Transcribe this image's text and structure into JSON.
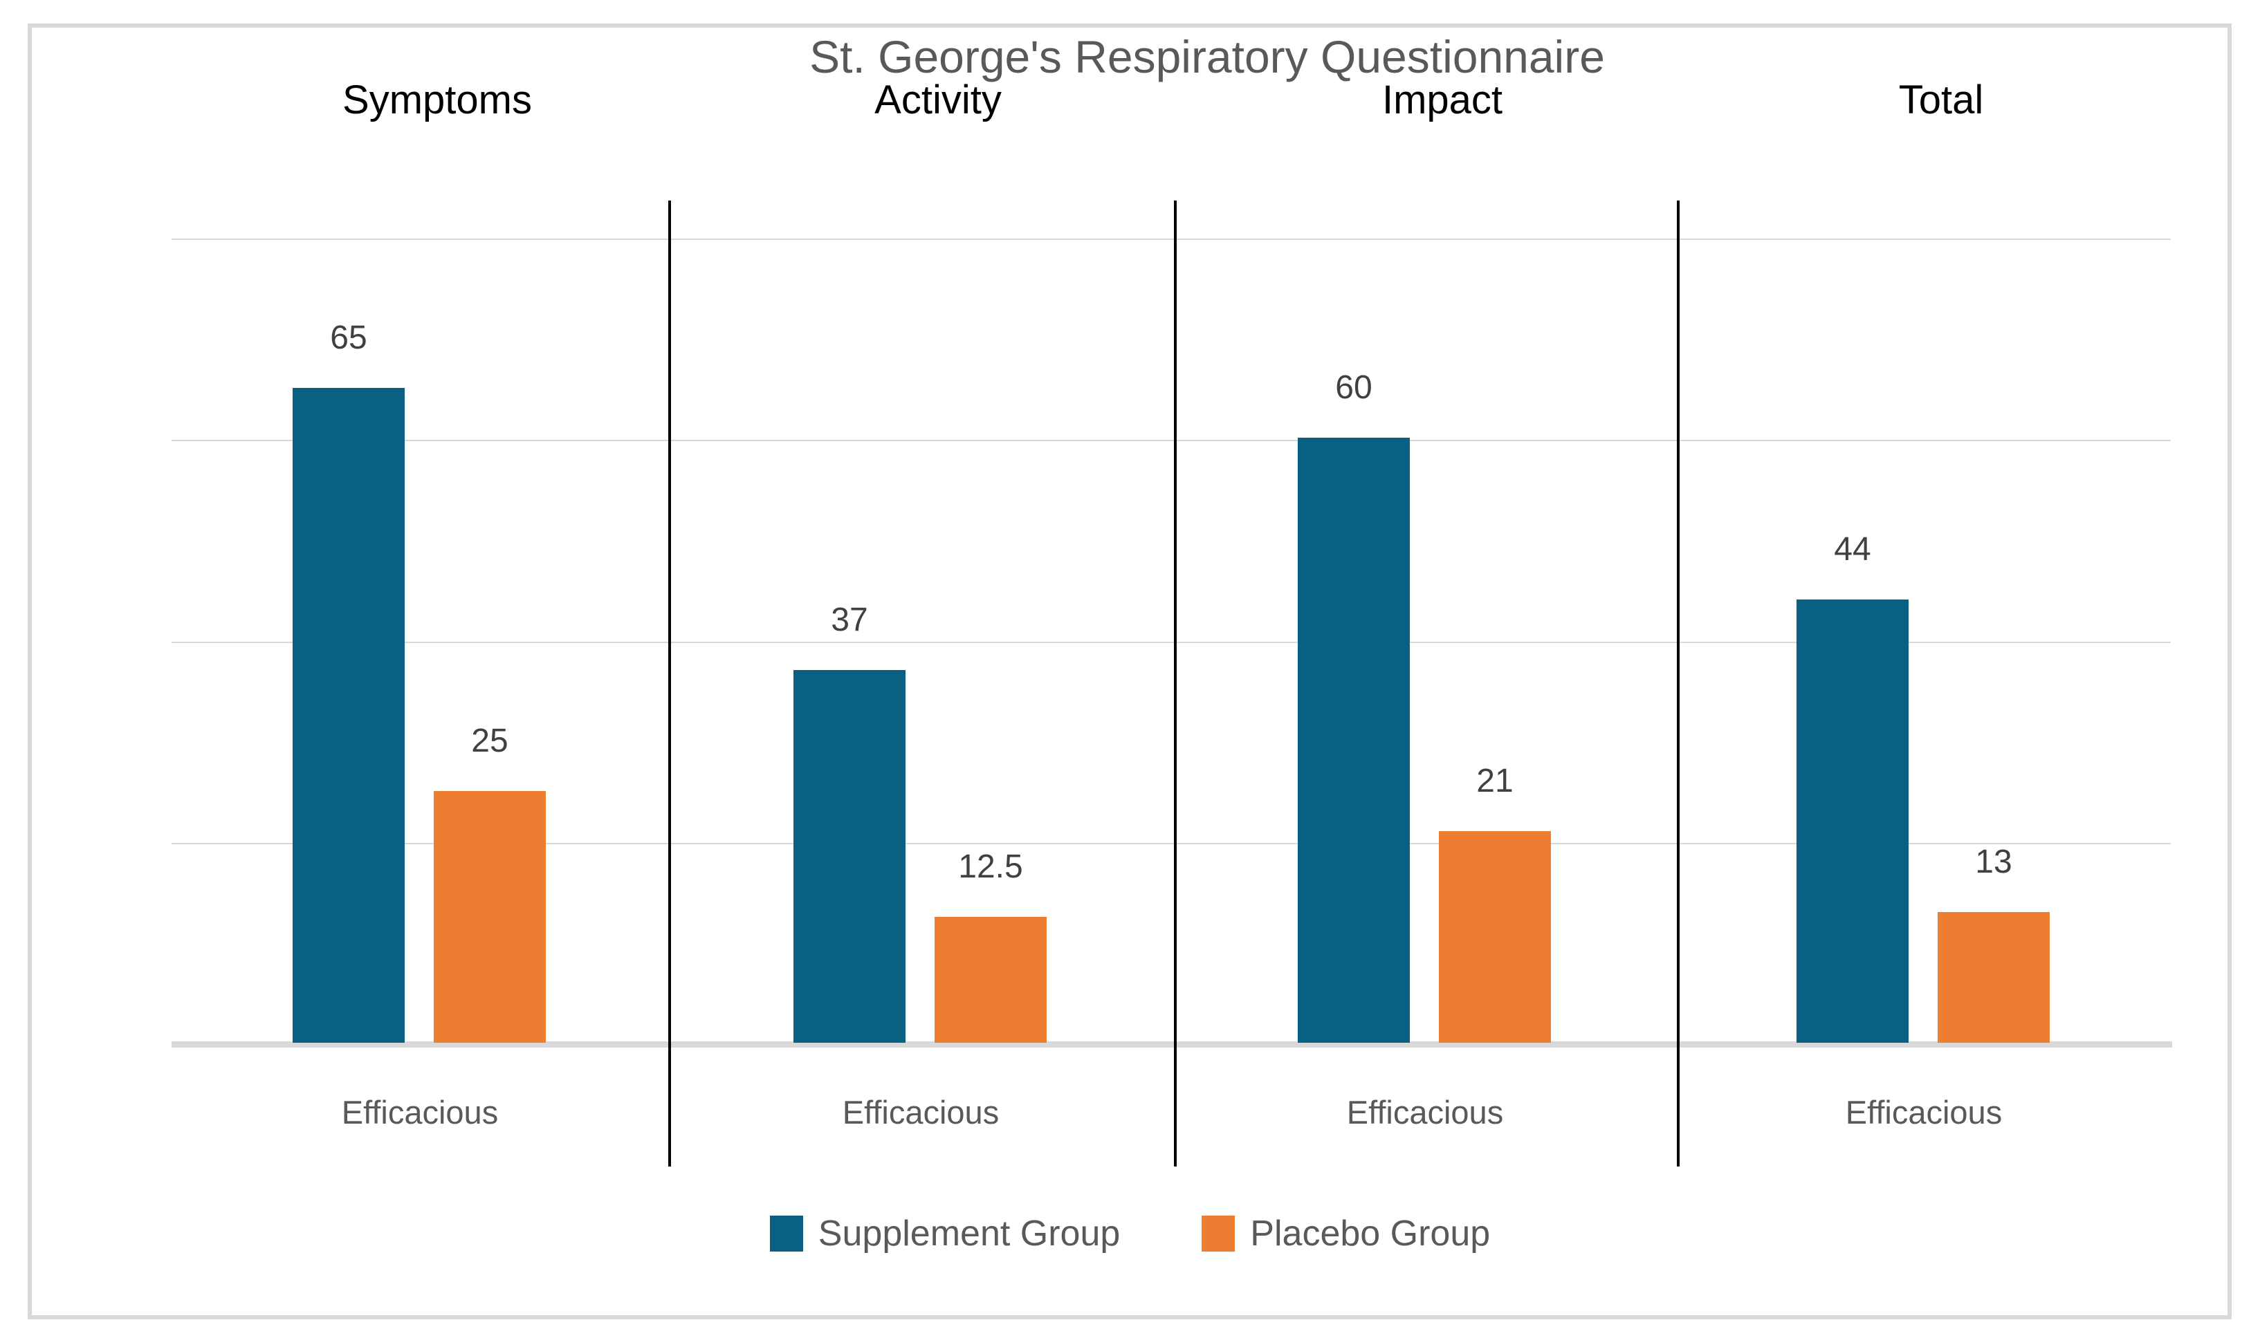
{
  "chart_data": {
    "type": "bar",
    "title": "St. George's Respiratory Questionnaire",
    "panels": [
      "Symptoms",
      "Activity",
      "Impact",
      "Total"
    ],
    "categories": [
      "Efficacious",
      "Efficacious",
      "Efficacious",
      "Efficacious"
    ],
    "series": [
      {
        "name": "Supplement Group",
        "color": "#086183",
        "values": [
          65,
          37,
          60,
          44
        ]
      },
      {
        "name": "Placebo Group",
        "color": "#ED7D31",
        "values": [
          25,
          12.5,
          21,
          13
        ]
      }
    ],
    "data_labels": true,
    "ylim": [
      0,
      80
    ],
    "gridline_step": 20,
    "grid": true,
    "y_axis_labels_visible": false,
    "legend_position": "bottom"
  },
  "legend": {
    "items": [
      {
        "label": "Supplement Group",
        "color": "#086183"
      },
      {
        "label": "Placebo Group",
        "color": "#ED7D31"
      }
    ]
  },
  "style_colors": {
    "title_text": "#595959",
    "header_text": "#000000",
    "value_label_text": "#404040",
    "category_text": "#595959",
    "gridline": "#D9D9D9",
    "frame_border": "#D9D9D9",
    "separator": "#000000"
  }
}
